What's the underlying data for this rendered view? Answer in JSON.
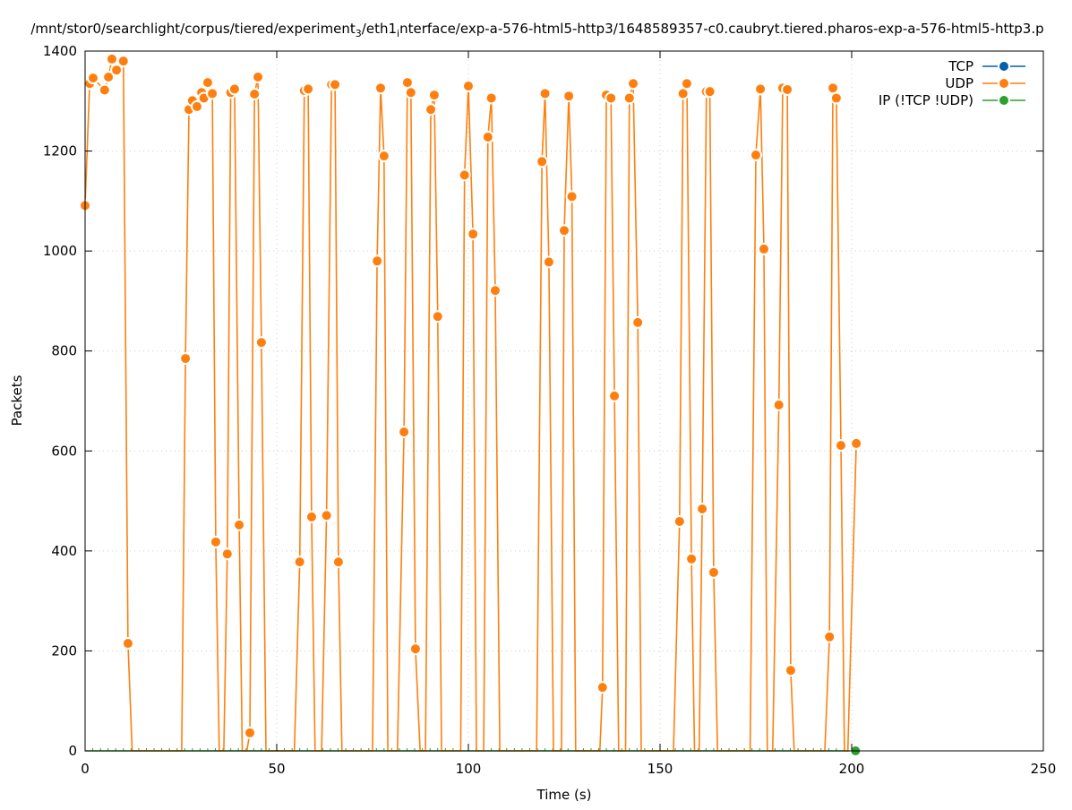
{
  "chart_data": {
    "type": "line",
    "title_parts": [
      "/mnt/stor0/searchlight/corpus/tiered/experiment",
      "3",
      "/eth1",
      "i",
      "nterface/exp-a-576-html5-http3/1648589357-c0.caubryt.tiered.pharos-exp-a-576-html5-http3.p"
    ],
    "xlabel": "Time (s)",
    "ylabel": "Packets",
    "xlim": [
      0,
      250
    ],
    "ylim": [
      0,
      1400
    ],
    "xticks": [
      0,
      50,
      100,
      150,
      200,
      250
    ],
    "yticks": [
      0,
      200,
      400,
      600,
      800,
      1000,
      1200,
      1400
    ],
    "grid": true,
    "legend_position": "top-right",
    "series": [
      {
        "name": "TCP",
        "color": "#0060ad",
        "points": []
      },
      {
        "name": "UDP",
        "color": "#ff7f0e",
        "points": [
          [
            0,
            1091
          ],
          [
            1.2,
            1335
          ],
          [
            2.1,
            1346
          ],
          [
            5.1,
            1322
          ],
          [
            6.1,
            1348
          ],
          [
            7,
            1384
          ],
          [
            8.2,
            1362
          ],
          [
            10,
            1380
          ],
          [
            11.2,
            215
          ],
          [
            12.3,
            0
          ],
          [
            25.2,
            0
          ],
          [
            26.2,
            785
          ],
          [
            27.1,
            1283
          ],
          [
            28,
            1301
          ],
          [
            29.2,
            1289
          ],
          [
            30.4,
            1317
          ],
          [
            31,
            1306
          ],
          [
            32,
            1337
          ],
          [
            33.2,
            1315
          ],
          [
            34.1,
            418
          ],
          [
            35,
            0
          ],
          [
            36.2,
            0
          ],
          [
            37.1,
            394
          ],
          [
            38,
            1317
          ],
          [
            39,
            1324
          ],
          [
            40.2,
            452
          ],
          [
            41,
            0
          ],
          [
            42.2,
            0
          ],
          [
            43,
            36
          ],
          [
            44.2,
            1314
          ],
          [
            45.1,
            1348
          ],
          [
            46,
            817
          ],
          [
            47.2,
            0
          ],
          [
            54.6,
            0
          ],
          [
            56,
            378
          ],
          [
            57.2,
            1321
          ],
          [
            58.2,
            1324
          ],
          [
            59.1,
            468
          ],
          [
            60,
            0
          ],
          [
            61.7,
            0
          ],
          [
            63,
            471
          ],
          [
            64.3,
            1333
          ],
          [
            65.2,
            1333
          ],
          [
            66.1,
            378
          ],
          [
            67,
            0
          ],
          [
            75,
            0
          ],
          [
            76.2,
            980
          ],
          [
            77.1,
            1326
          ],
          [
            78,
            1190
          ],
          [
            79,
            0
          ],
          [
            81.5,
            0
          ],
          [
            83.2,
            638
          ],
          [
            84.1,
            1337
          ],
          [
            85,
            1317
          ],
          [
            86.2,
            204
          ],
          [
            87.4,
            0
          ],
          [
            88.8,
            0
          ],
          [
            90.2,
            1283
          ],
          [
            91.1,
            1312
          ],
          [
            92,
            869
          ],
          [
            93,
            0
          ],
          [
            98,
            0
          ],
          [
            99,
            1152
          ],
          [
            100,
            1330
          ],
          [
            101.2,
            1034
          ],
          [
            102.1,
            0
          ],
          [
            104,
            0
          ],
          [
            105.1,
            1228
          ],
          [
            106,
            1306
          ],
          [
            107,
            921
          ],
          [
            108.2,
            0
          ],
          [
            117.8,
            0
          ],
          [
            119.2,
            1179
          ],
          [
            120,
            1315
          ],
          [
            121,
            978
          ],
          [
            122.2,
            0
          ],
          [
            124.3,
            0
          ],
          [
            125,
            1041
          ],
          [
            126.2,
            1310
          ],
          [
            127,
            1109
          ],
          [
            128,
            0
          ],
          [
            134.3,
            0
          ],
          [
            135,
            127
          ],
          [
            136,
            1312
          ],
          [
            137.2,
            1306
          ],
          [
            138.1,
            710
          ],
          [
            139.2,
            0
          ],
          [
            141,
            0
          ],
          [
            142,
            1306
          ],
          [
            143,
            1335
          ],
          [
            144.2,
            857
          ],
          [
            145.1,
            0
          ],
          [
            153.5,
            0
          ],
          [
            155.1,
            459
          ],
          [
            156,
            1315
          ],
          [
            157,
            1335
          ],
          [
            158.2,
            384
          ],
          [
            159,
            0
          ],
          [
            160.2,
            0
          ],
          [
            161,
            484
          ],
          [
            162.1,
            1319
          ],
          [
            163,
            1319
          ],
          [
            164,
            357
          ],
          [
            165,
            0
          ],
          [
            173.5,
            0
          ],
          [
            175,
            1192
          ],
          [
            176.2,
            1324
          ],
          [
            177.1,
            1004
          ],
          [
            178,
            0
          ],
          [
            179.4,
            0
          ],
          [
            181,
            692
          ],
          [
            182,
            1326
          ],
          [
            183.2,
            1323
          ],
          [
            184.1,
            161
          ],
          [
            185,
            0
          ],
          [
            193,
            0
          ],
          [
            194.2,
            228
          ],
          [
            195.1,
            1326
          ],
          [
            196,
            1306
          ],
          [
            197.2,
            611
          ],
          [
            198.1,
            0
          ],
          [
            199,
            0
          ],
          [
            201.2,
            615
          ]
        ]
      },
      {
        "name": "IP (!TCP  !UDP)",
        "color": "#2ca02c",
        "points": [
          [
            0,
            0
          ],
          [
            201,
            0
          ]
        ]
      }
    ]
  }
}
